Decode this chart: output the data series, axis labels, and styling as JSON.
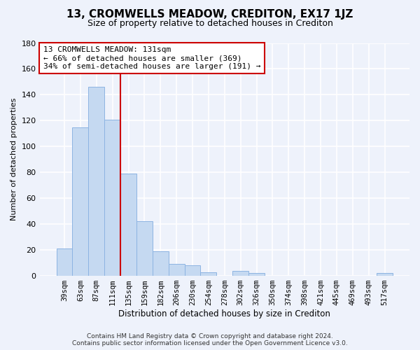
{
  "title": "13, CROMWELLS MEADOW, CREDITON, EX17 1JZ",
  "subtitle": "Size of property relative to detached houses in Crediton",
  "xlabel": "Distribution of detached houses by size in Crediton",
  "ylabel": "Number of detached properties",
  "bar_labels": [
    "39sqm",
    "63sqm",
    "87sqm",
    "111sqm",
    "135sqm",
    "159sqm",
    "182sqm",
    "206sqm",
    "230sqm",
    "254sqm",
    "278sqm",
    "302sqm",
    "326sqm",
    "350sqm",
    "374sqm",
    "398sqm",
    "421sqm",
    "445sqm",
    "469sqm",
    "493sqm",
    "517sqm"
  ],
  "bar_values": [
    21,
    115,
    146,
    121,
    79,
    42,
    19,
    9,
    8,
    3,
    0,
    4,
    2,
    0,
    0,
    0,
    0,
    0,
    0,
    0,
    2
  ],
  "bar_color": "#c5d9f1",
  "bar_edge_color": "#8db4e2",
  "vline_x": 3.5,
  "vline_color": "#cc0000",
  "annotation_text": "13 CROMWELLS MEADOW: 131sqm\n← 66% of detached houses are smaller (369)\n34% of semi-detached houses are larger (191) →",
  "annotation_box_color": "white",
  "annotation_box_edge": "#cc0000",
  "ylim": [
    0,
    180
  ],
  "yticks": [
    0,
    20,
    40,
    60,
    80,
    100,
    120,
    140,
    160,
    180
  ],
  "footer_line1": "Contains HM Land Registry data © Crown copyright and database right 2024.",
  "footer_line2": "Contains public sector information licensed under the Open Government Licence v3.0.",
  "bg_color": "#eef2fb",
  "plot_bg_color": "#eef2fb",
  "title_fontsize": 11,
  "subtitle_fontsize": 9
}
